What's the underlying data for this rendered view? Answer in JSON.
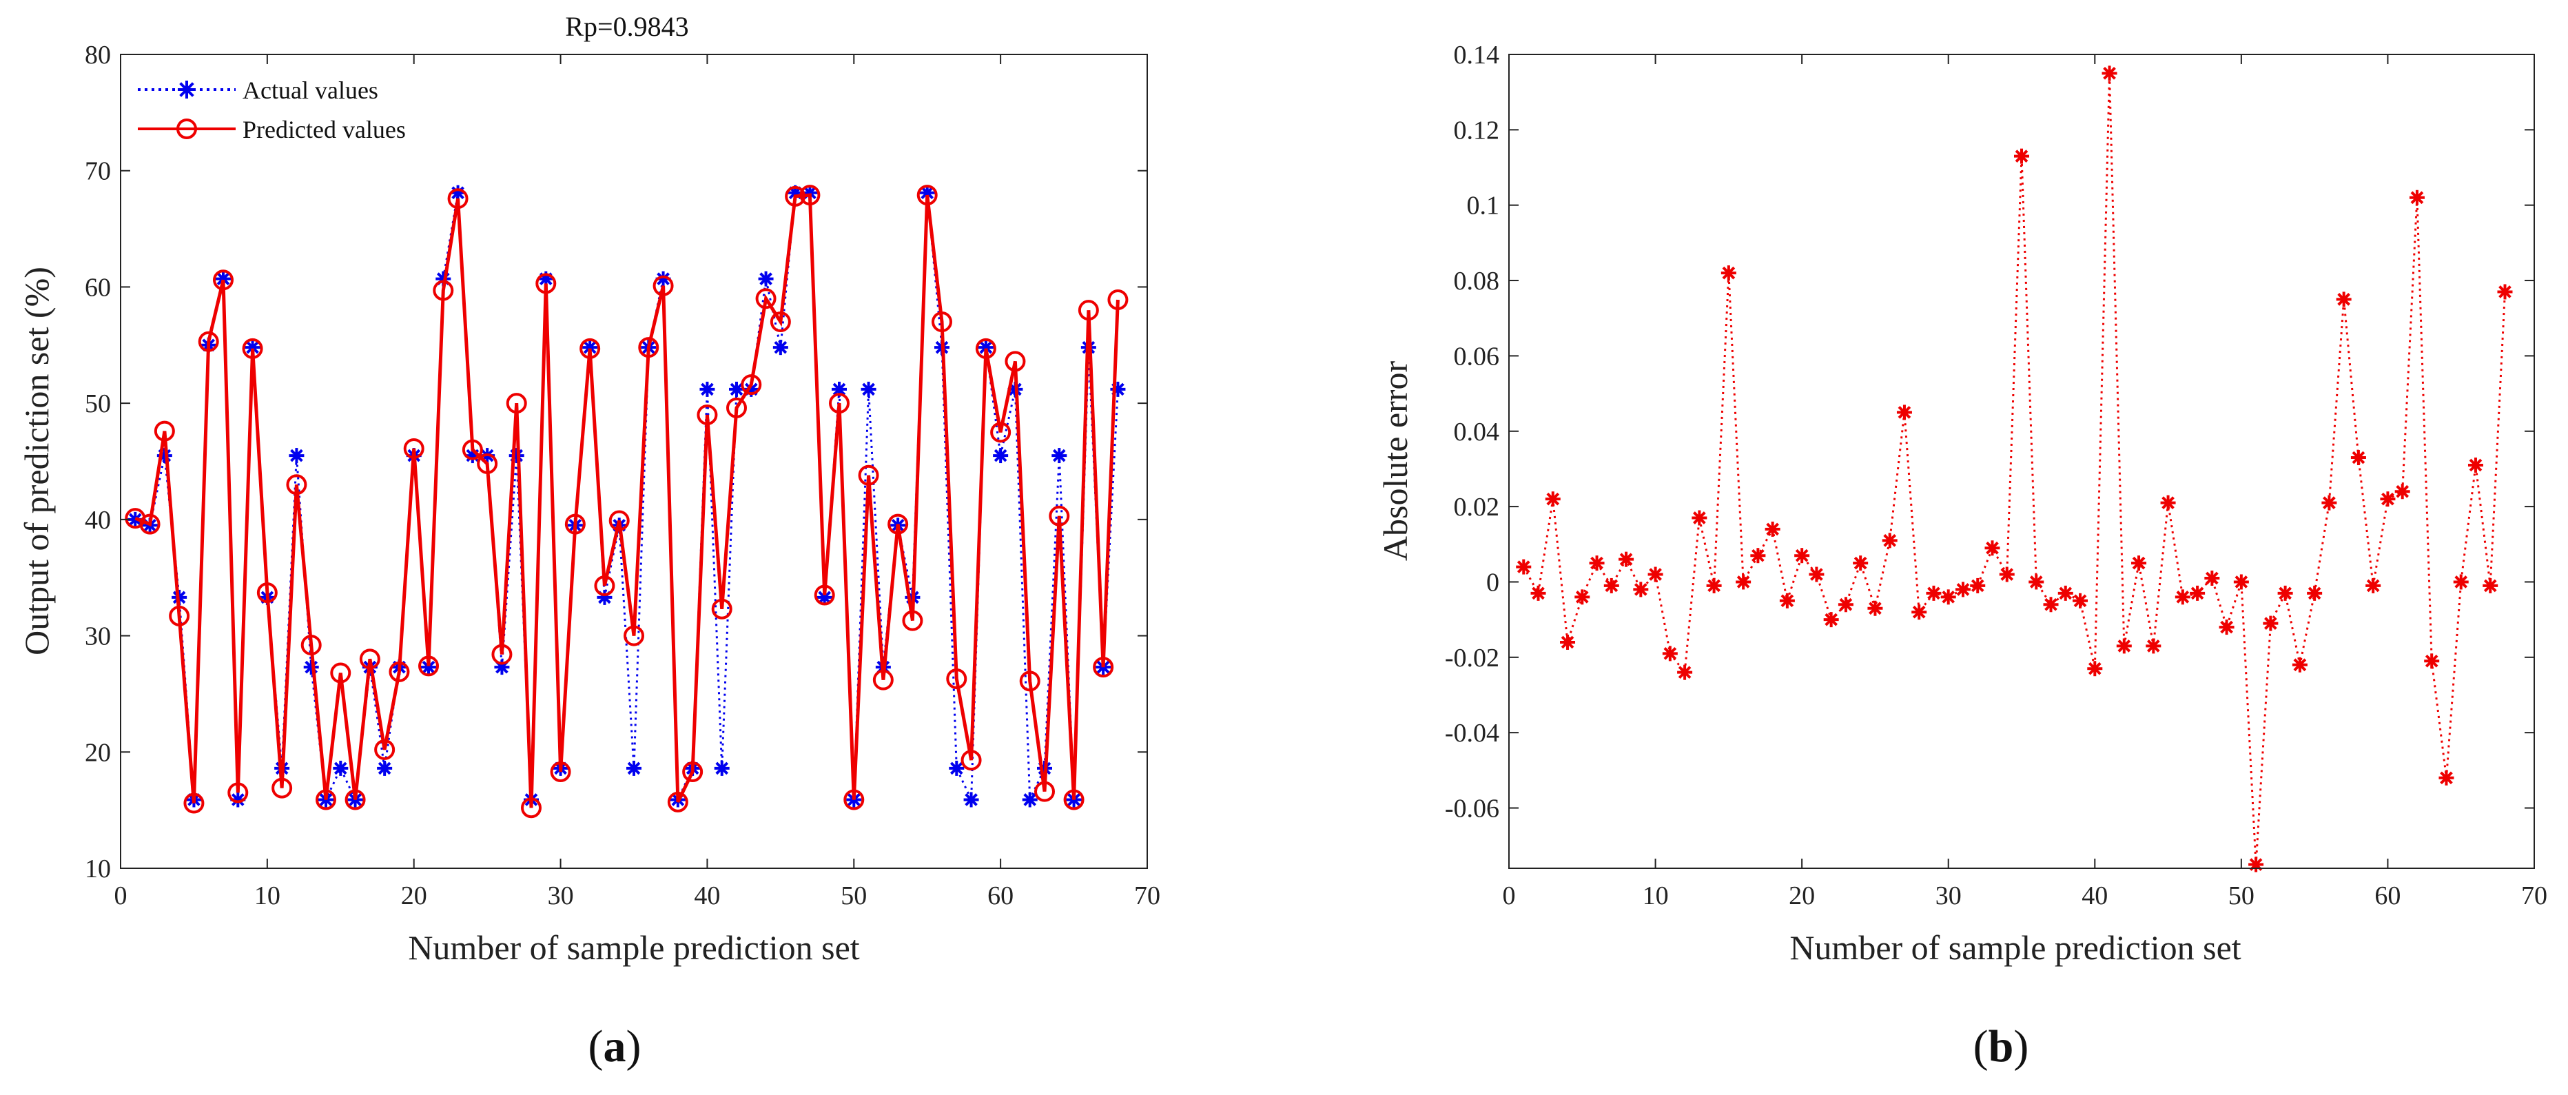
{
  "figure": {
    "panel_a_label": "a",
    "panel_b_label": "b"
  },
  "chart_data": [
    {
      "type": "line",
      "title": "Rp=0.9843",
      "xlabel": "Number of sample prediction set",
      "ylabel": "Output of prediction set (%)",
      "xlim": [
        0,
        70
      ],
      "ylim": [
        10,
        80
      ],
      "xticks": [
        0,
        10,
        20,
        30,
        40,
        50,
        60,
        70
      ],
      "yticks": [
        10,
        20,
        30,
        40,
        50,
        60,
        70,
        80
      ],
      "grid": false,
      "legend_position": "top-left",
      "x": [
        1,
        2,
        3,
        4,
        5,
        6,
        7,
        8,
        9,
        10,
        11,
        12,
        13,
        14,
        15,
        16,
        17,
        18,
        19,
        20,
        21,
        22,
        23,
        24,
        25,
        26,
        27,
        28,
        29,
        30,
        31,
        32,
        33,
        34,
        35,
        36,
        37,
        38,
        39,
        40,
        41,
        42,
        43,
        44,
        45,
        46,
        47,
        48,
        49,
        50,
        51,
        52,
        53,
        54,
        55,
        56,
        57,
        58,
        59,
        60,
        61,
        62,
        63,
        64,
        65,
        66,
        67,
        68
      ],
      "series": [
        {
          "name": "Actual values",
          "color": "#0000ee",
          "line_style": "dotted",
          "marker": "asterisk",
          "values": [
            40,
            39.5,
            45.5,
            33.3,
            15.9,
            55,
            60.7,
            15.9,
            54.8,
            33.3,
            18.6,
            45.5,
            27.3,
            15.9,
            18.6,
            15.9,
            27.3,
            18.6,
            27.3,
            45.5,
            27.3,
            60.7,
            68.1,
            45.5,
            45.5,
            27.3,
            45.5,
            15.9,
            60.7,
            18.6,
            39.5,
            54.8,
            33.3,
            39.5,
            18.6,
            54.8,
            60.7,
            15.9,
            18.6,
            51.2,
            18.6,
            51.2,
            51.2,
            60.7,
            54.8,
            68.1,
            68.1,
            33.3,
            51.2,
            15.9,
            51.2,
            27.3,
            39.5,
            33.3,
            68.1,
            54.8,
            18.6,
            15.9,
            54.8,
            45.5,
            51.2,
            15.9,
            18.6,
            45.5,
            15.9,
            54.8,
            27.3,
            51.2
          ]
        },
        {
          "name": "Predicted values",
          "color": "#ee0000",
          "line_style": "solid",
          "marker": "circle",
          "values": [
            40.1,
            39.6,
            47.6,
            31.7,
            15.6,
            55.3,
            60.6,
            16.5,
            54.7,
            33.7,
            16.9,
            43.0,
            29.2,
            15.9,
            26.8,
            15.9,
            28.0,
            20.2,
            26.9,
            46.1,
            27.4,
            59.7,
            67.6,
            46.0,
            44.8,
            28.4,
            50.0,
            15.2,
            60.3,
            18.3,
            39.6,
            54.7,
            34.3,
            39.9,
            30.0,
            54.8,
            60.1,
            15.7,
            18.3,
            49.0,
            32.3,
            49.6,
            51.6,
            59.0,
            57.0,
            67.8,
            67.9,
            33.5,
            50.0,
            15.9,
            43.8,
            26.2,
            39.6,
            31.3,
            67.9,
            57.0,
            26.3,
            19.3,
            54.7,
            47.5,
            53.6,
            26.1,
            16.6,
            40.3,
            15.9,
            58.0,
            27.3,
            58.9
          ]
        }
      ]
    },
    {
      "type": "line",
      "title": "",
      "xlabel": "Number of sample prediction set",
      "ylabel": "Absolute error",
      "xlim": [
        0,
        70
      ],
      "ylim": [
        -0.076,
        0.14
      ],
      "xticks": [
        0,
        10,
        20,
        30,
        40,
        50,
        60,
        70
      ],
      "yticks": [
        -0.06,
        -0.04,
        -0.02,
        0,
        0.02,
        0.04,
        0.06,
        0.08,
        0.1,
        0.12,
        0.14
      ],
      "ytick_labels": [
        "-0.06",
        "-0.04",
        "-0.02",
        "0",
        "0.02",
        "0.04",
        "0.06",
        "0.08",
        "0.1",
        "0.12",
        "0.14"
      ],
      "grid": false,
      "x": [
        1,
        2,
        3,
        4,
        5,
        6,
        7,
        8,
        9,
        10,
        11,
        12,
        13,
        14,
        15,
        16,
        17,
        18,
        19,
        20,
        21,
        22,
        23,
        24,
        25,
        26,
        27,
        28,
        29,
        30,
        31,
        32,
        33,
        34,
        35,
        36,
        37,
        38,
        39,
        40,
        41,
        42,
        43,
        44,
        45,
        46,
        47,
        48,
        49,
        50,
        51,
        52,
        53,
        54,
        55,
        56,
        57,
        58,
        59,
        60,
        61,
        62,
        63,
        64,
        65,
        66,
        67,
        68
      ],
      "series": [
        {
          "name": "Absolute error",
          "color": "#ee0000",
          "line_style": "dotted",
          "marker": "asterisk",
          "values": [
            0.004,
            -0.003,
            0.022,
            -0.016,
            -0.004,
            0.005,
            -0.001,
            0.006,
            -0.002,
            0.002,
            -0.019,
            -0.024,
            0.017,
            -0.001,
            0.082,
            0,
            0.007,
            0.014,
            -0.005,
            0.007,
            0.002,
            -0.01,
            -0.006,
            0.005,
            -0.007,
            0.011,
            0.045,
            -0.008,
            -0.003,
            -0.004,
            -0.002,
            -0.001,
            0.009,
            0.002,
            0.113,
            0,
            -0.006,
            -0.003,
            -0.005,
            -0.023,
            0.135,
            -0.017,
            0.005,
            -0.017,
            0.021,
            -0.004,
            -0.003,
            0.001,
            -0.012,
            0,
            -0.075,
            -0.011,
            -0.003,
            -0.022,
            -0.003,
            0.021,
            0.075,
            0.033,
            -0.001,
            0.022,
            0.024,
            0.102,
            -0.021,
            -0.052,
            0,
            0.031,
            -0.001,
            0.077
          ]
        }
      ]
    }
  ]
}
